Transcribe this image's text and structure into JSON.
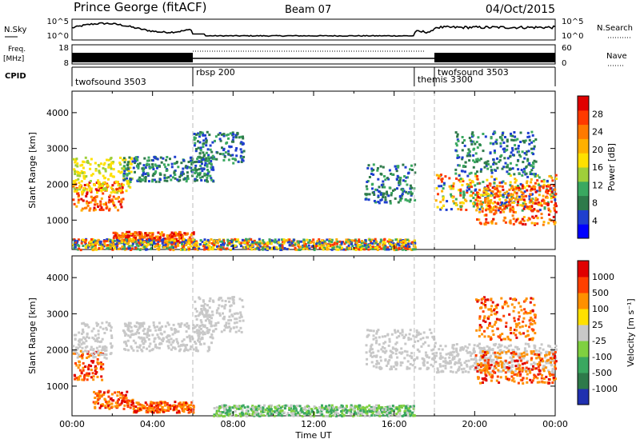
{
  "header": {
    "station": "Prince George (fitACF)",
    "beam": "Beam 07",
    "date": "04/Oct/2015"
  },
  "top_panels": {
    "nsky_label": "N.Sky",
    "nsky_ticks": [
      "10^5",
      "10^0"
    ],
    "nsearch_label": "N.Search",
    "nsearch_ticks": [
      "10^5",
      "10^0"
    ],
    "freq_label_1": "Freq.",
    "freq_label_2": "[MHz]",
    "freq_ticks": [
      "18",
      "8"
    ],
    "nave_label": "Nave",
    "nave_ticks": [
      "60",
      "0"
    ],
    "cpid_label": "CPID",
    "cpid_segments": [
      {
        "label": "twofsound 3503",
        "start": 0.0,
        "end": 6.0
      },
      {
        "label": "rbsp 200",
        "start": 6.0,
        "end": 17.0
      },
      {
        "label": "themis 3300",
        "start": 17.0,
        "end": 18.0
      },
      {
        "label": "twofsound 3503",
        "start": 18.0,
        "end": 24.0
      }
    ]
  },
  "chart_data": [
    {
      "type": "heatmap",
      "title": "",
      "ylabel": "Slant Range [km]",
      "xlabel": "",
      "xlim": [
        0,
        24
      ],
      "ylim": [
        180,
        4600
      ],
      "yticks": [
        "1000",
        "2000",
        "3000",
        "4000"
      ],
      "colorbar": {
        "label": "Power [dB]",
        "ticks": [
          "28",
          "24",
          "20",
          "16",
          "12",
          "8",
          "4"
        ],
        "colors": [
          "#0000ff",
          "#1f3fcf",
          "#2e7a4a",
          "#3aa860",
          "#9fcf3a",
          "#ffe000",
          "#ffb000",
          "#ff7a00",
          "#ff3a00",
          "#e00000"
        ]
      }
    },
    {
      "type": "heatmap",
      "title": "",
      "ylabel": "Slant Range [km]",
      "xlabel": "Time UT",
      "xlim": [
        0,
        24
      ],
      "ylim": [
        180,
        4600
      ],
      "yticks": [
        "1000",
        "2000",
        "3000",
        "4000"
      ],
      "xticks": [
        "00:00",
        "04:00",
        "08:00",
        "12:00",
        "16:00",
        "20:00",
        "00:00"
      ],
      "colorbar": {
        "label": "Velocity [m s⁻¹]",
        "ticks": [
          "1000",
          "500",
          "100",
          "25",
          "-25",
          "-100",
          "-500",
          "-1000"
        ],
        "colors": [
          "#2030b0",
          "#2e7a4a",
          "#3aa860",
          "#7fd040",
          "#c8c8c8",
          "#ffe000",
          "#ff9000",
          "#ff4000",
          "#e00000"
        ]
      }
    }
  ]
}
